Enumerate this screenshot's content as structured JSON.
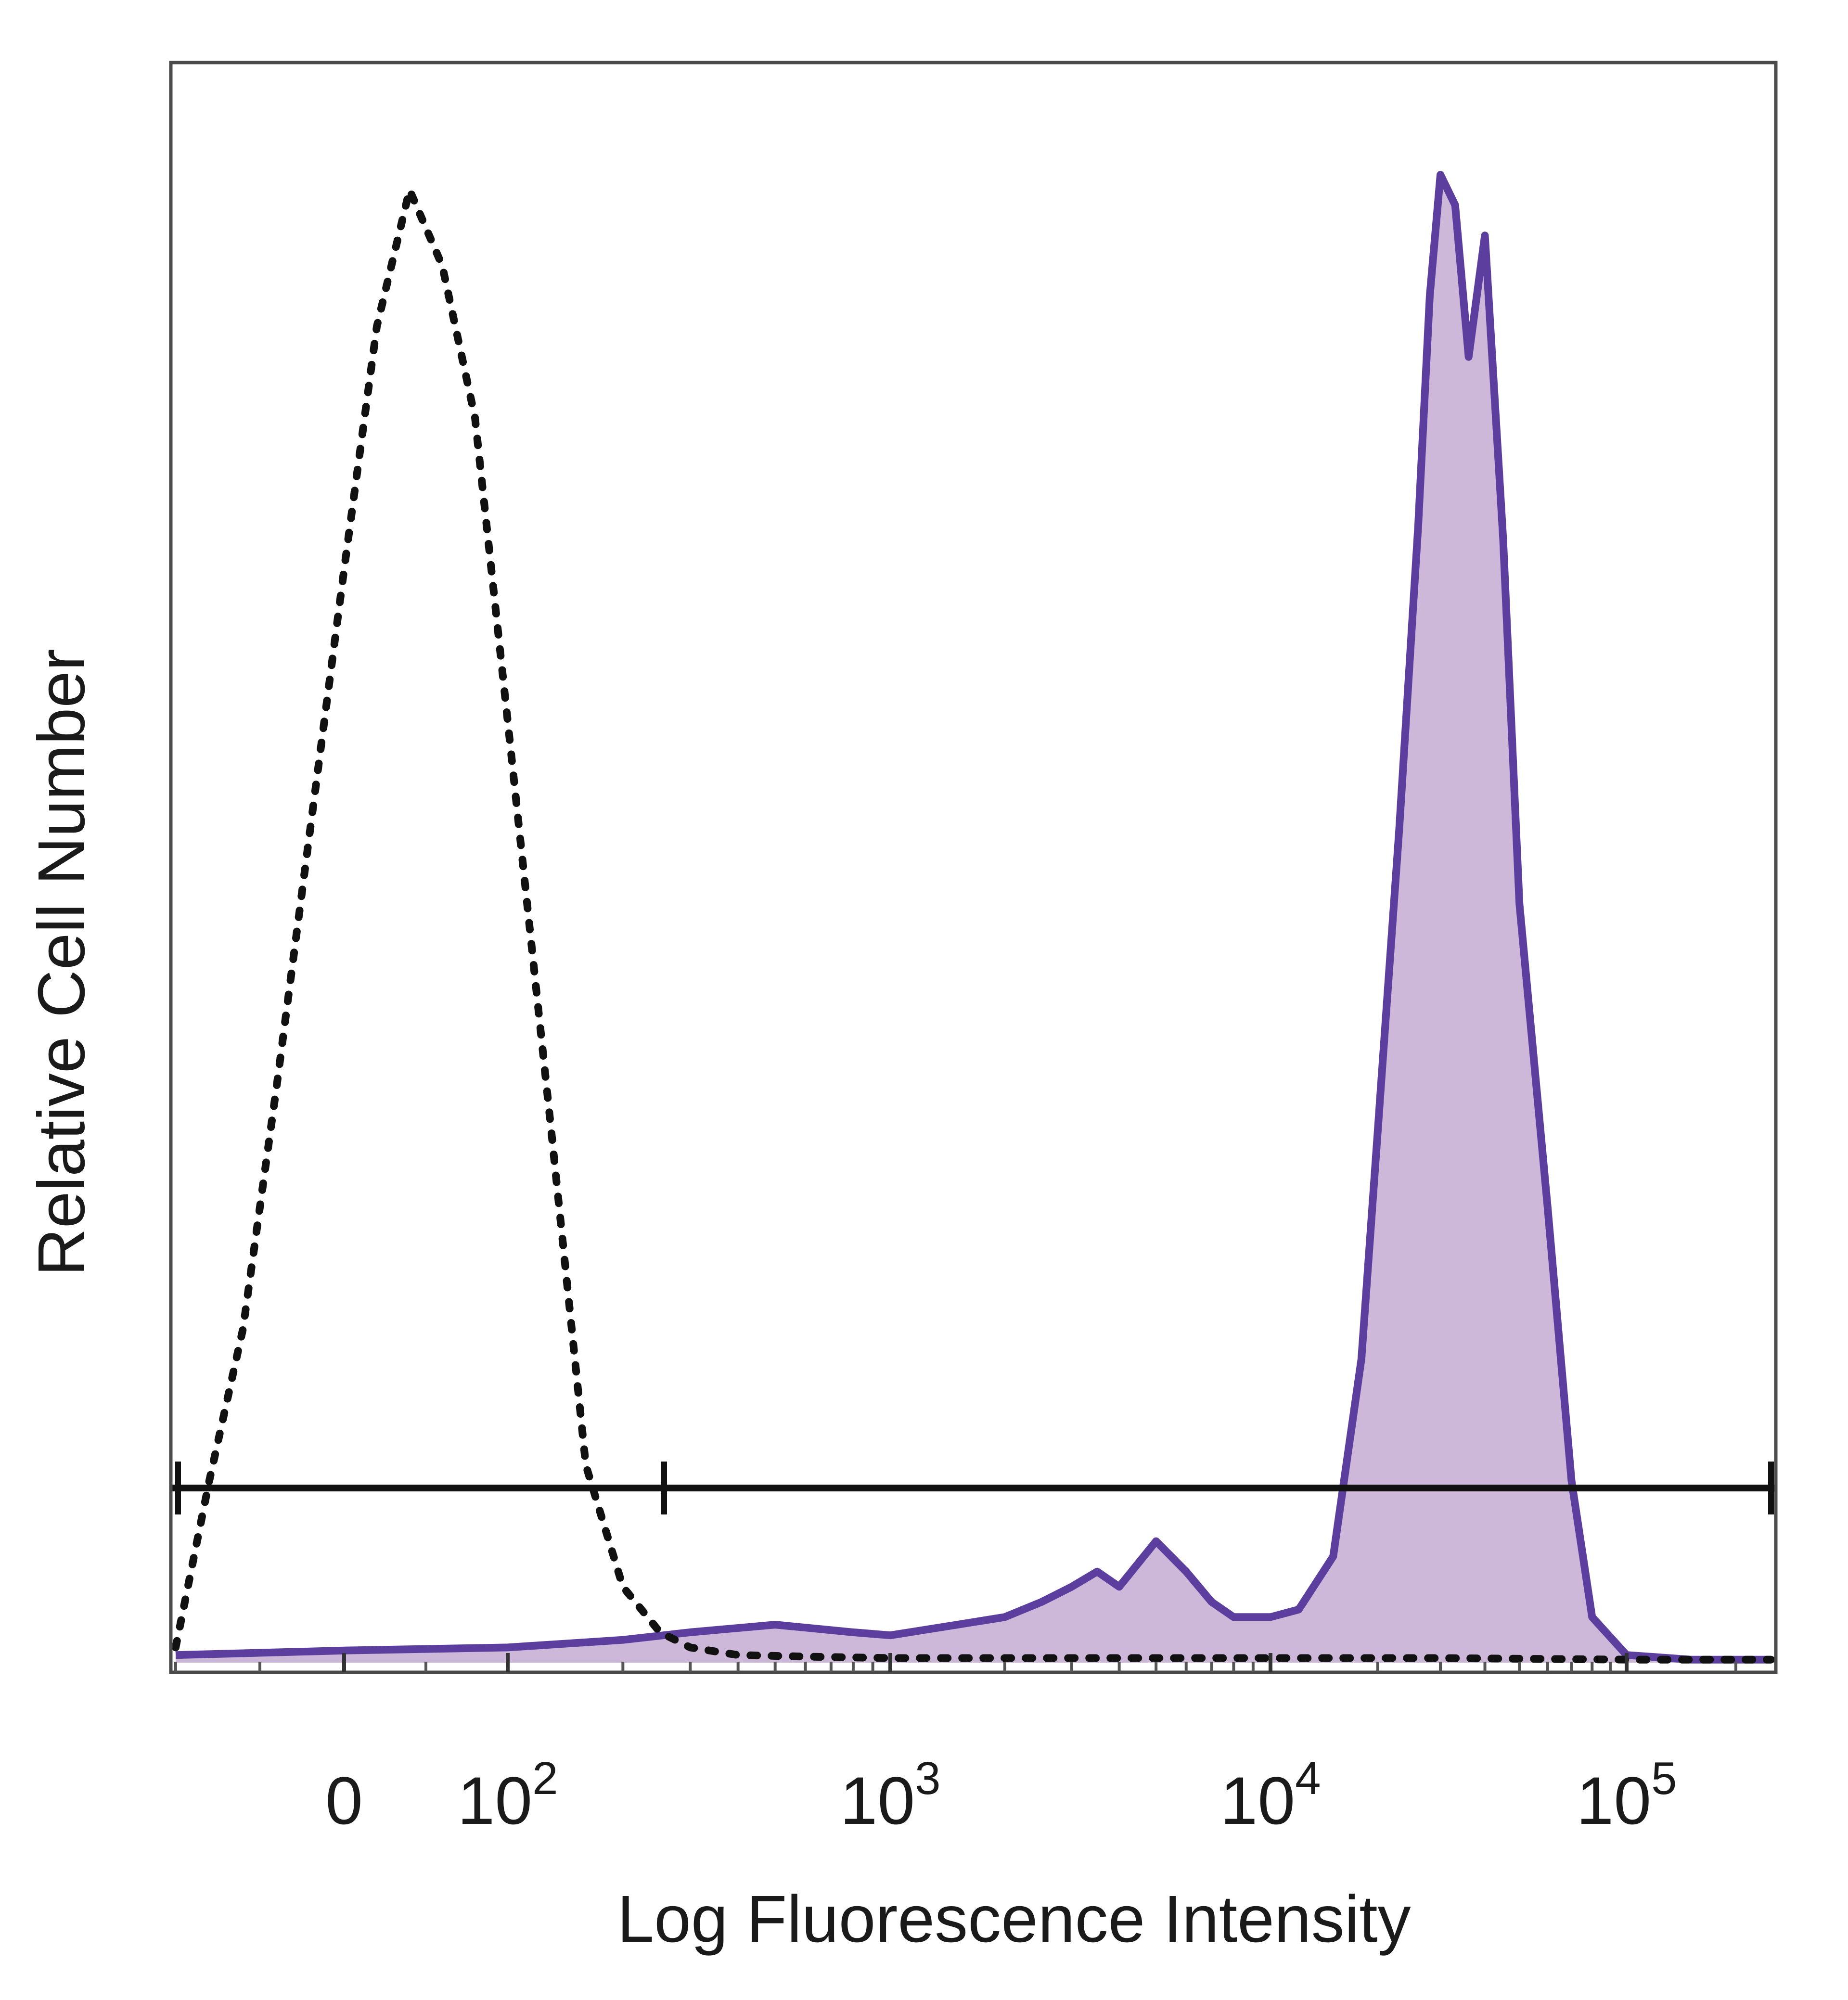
{
  "chart_data": {
    "type": "area",
    "title": "",
    "xlabel": "Log Fluorescence Intensity",
    "ylabel": "Relative Cell Number",
    "x_scale": "biexponential",
    "x_ticks": [
      {
        "base": "0",
        "exp": ""
      },
      {
        "base": "10",
        "exp": "2"
      },
      {
        "base": "10",
        "exp": "3"
      },
      {
        "base": "10",
        "exp": "4"
      },
      {
        "base": "10",
        "exp": "5"
      }
    ],
    "x_tick_values": [
      0,
      100,
      1000,
      10000,
      100000
    ],
    "xlim": [
      -100,
      250000
    ],
    "ylim": [
      0,
      100
    ],
    "grid": false,
    "legend": "none",
    "gate": {
      "x_start": -100,
      "x_end": 250000,
      "y": 11.5
    },
    "series": [
      {
        "style": "dotted",
        "color": "#111111",
        "x": [
          -100,
          -80,
          -60,
          -40,
          -20,
          0,
          20,
          40,
          60,
          80,
          100,
          130,
          160,
          200,
          250,
          300,
          400,
          600,
          1000,
          2000,
          5000,
          10000,
          30000,
          100000,
          250000
        ],
        "y": [
          1,
          12,
          22,
          38,
          55,
          72,
          88,
          97,
          92,
          82,
          62,
          35,
          13,
          5,
          2,
          1,
          0.5,
          0.4,
          0.3,
          0.3,
          0.3,
          0.3,
          0.3,
          0.2,
          0.2
        ]
      },
      {
        "style": "filled",
        "color": "#5b3e9e",
        "fill": "#cdb8da",
        "x": [
          -100,
          0,
          100,
          200,
          300,
          500,
          800,
          1000,
          1500,
          2000,
          2500,
          3000,
          3500,
          4000,
          5000,
          6000,
          7000,
          8000,
          10000,
          12000,
          15000,
          18000,
          20000,
          23000,
          26000,
          28000,
          30000,
          33000,
          36000,
          40000,
          45000,
          50000,
          60000,
          70000,
          80000,
          100000,
          150000,
          250000
        ],
        "y": [
          0.5,
          0.8,
          1,
          1.5,
          2,
          2.5,
          2,
          1.8,
          2.5,
          3,
          4,
          5,
          6,
          5,
          8,
          6,
          4,
          3,
          3,
          3.5,
          7,
          20,
          35,
          55,
          75,
          90,
          98,
          96,
          86,
          94,
          74,
          50,
          30,
          12,
          3,
          0.5,
          0.2,
          0.2
        ]
      }
    ]
  }
}
